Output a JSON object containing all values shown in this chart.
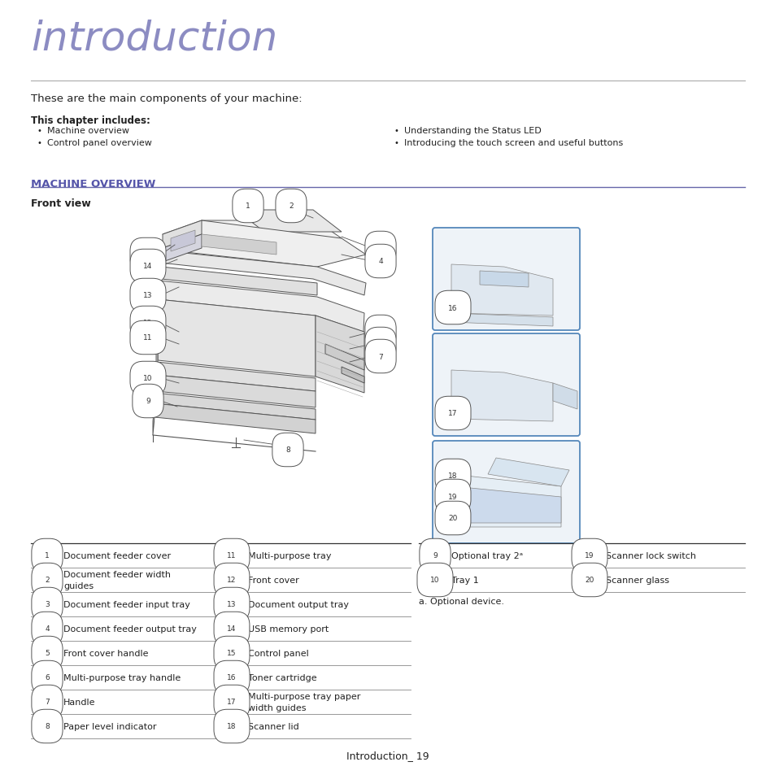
{
  "title": "introduction",
  "title_color": "#7878b8",
  "subtitle": "These are the main components of your machine:",
  "chapter_bold": "This chapter includes:",
  "bullet_left": [
    "Machine overview",
    "Control panel overview"
  ],
  "bullet_right": [
    "Understanding the Status LED",
    "Introducing the touch screen and useful buttons"
  ],
  "section_title": "MACHINE OVERVIEW",
  "section_color": "#5555aa",
  "subsection_title": "Front view",
  "parts_left": [
    [
      "1",
      "Document feeder cover",
      "11",
      "Multi-purpose tray"
    ],
    [
      "2",
      "Document feeder width\nguides",
      "12",
      "Front cover"
    ],
    [
      "3",
      "Document feeder input tray",
      "13",
      "Document output tray"
    ],
    [
      "4",
      "Document feeder output tray",
      "14",
      "USB memory port"
    ],
    [
      "5",
      "Front cover handle",
      "15",
      "Control panel"
    ],
    [
      "6",
      "Multi-purpose tray handle",
      "16",
      "Toner cartridge"
    ],
    [
      "7",
      "Handle",
      "17",
      "Multi-purpose tray paper\nwidth guides"
    ],
    [
      "8",
      "Paper level indicator",
      "18",
      "Scanner lid"
    ]
  ],
  "parts_right": [
    [
      "9",
      "Optional tray 2ᵃ",
      "19",
      "Scanner lock switch"
    ],
    [
      "10",
      "Tray 1",
      "20",
      "Scanner glass"
    ]
  ],
  "footnote": "a. Optional device.",
  "page_label": "Introduction_ 19",
  "bg_color": "#ffffff",
  "text_color": "#222222",
  "gray_text": "#555555",
  "line_color": "#aaaaaa",
  "section_line_color": "#6666aa",
  "table_line_color": "#888888"
}
